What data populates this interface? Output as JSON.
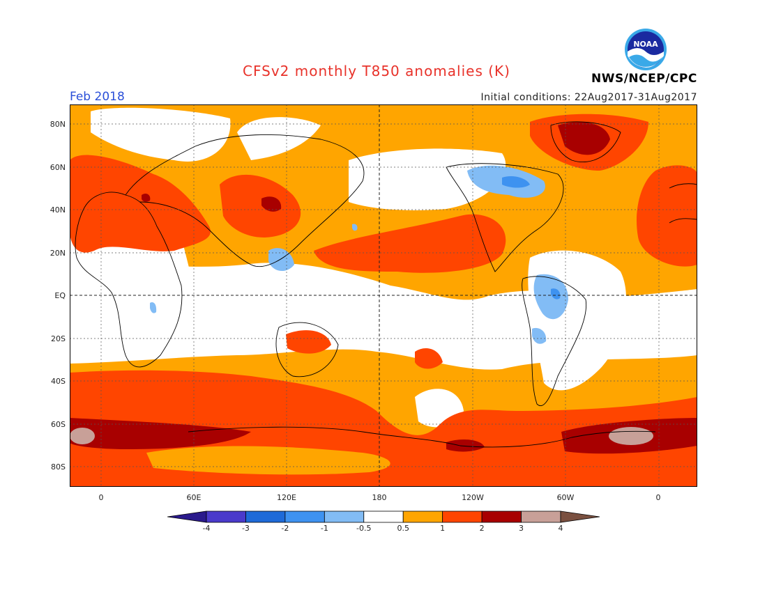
{
  "header": {
    "title": "CFSv2 monthly T850 anomalies (K)",
    "month": "Feb 2018",
    "initial_conditions": "Initial conditions: 22Aug2017-31Aug2017",
    "agency": "NWS/NCEP/CPC",
    "logo_text": "NOAA"
  },
  "map": {
    "lat_labels": [
      "80N",
      "60N",
      "40N",
      "20N",
      "EQ",
      "20S",
      "40S",
      "60S",
      "80S"
    ],
    "lon_labels": [
      "0",
      "60E",
      "120E",
      "180",
      "120W",
      "60W",
      "0"
    ]
  },
  "legend": {
    "labels": [
      "-4",
      "-3",
      "-2",
      "-1",
      "-0.5",
      "0.5",
      "1",
      "2",
      "3",
      "4"
    ],
    "colors": [
      "#2a1a8c",
      "#4a3acb",
      "#1e6ad8",
      "#3e92f0",
      "#82bcf5",
      "#ffffff",
      "#ffa500",
      "#ff4500",
      "#a80000",
      "#c8a098",
      "#7a5040"
    ]
  }
}
